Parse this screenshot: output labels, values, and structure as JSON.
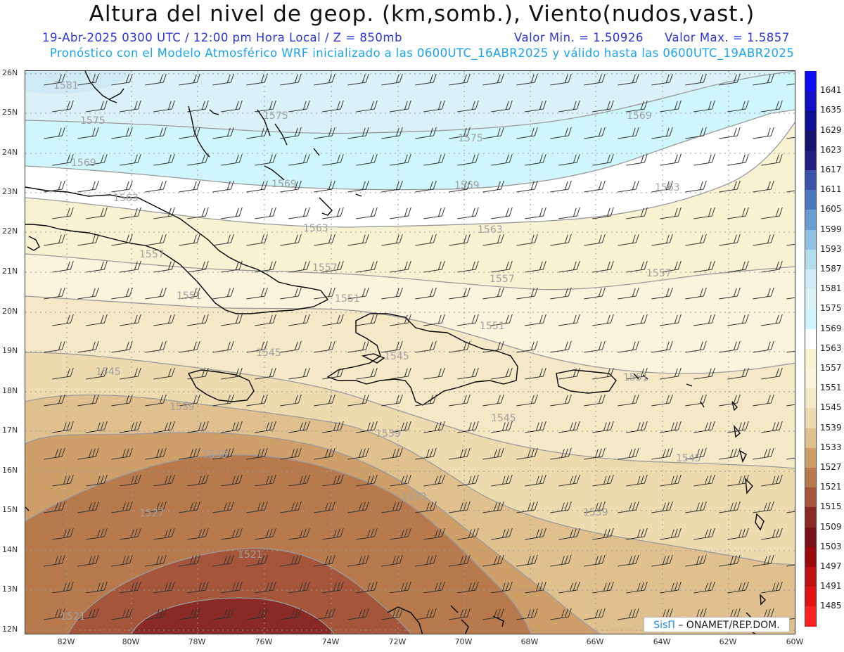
{
  "header": {
    "title": "Altura del nivel de geop. (km,somb.), Viento(nudos,vast.)",
    "date_line": "19-Abr-2025  0300 UTC / 12:00 pm Hora Local / Z = 850mb",
    "min_label": "Valor Min. = 1.50926",
    "max_label": "Valor Max. = 1.5857",
    "model_line": "Pronóstico con el Modelo Atmosférico WRF inicializado a las 0600UTC_16ABR2025 y válido hasta las  0600UTC_19ABR2025"
  },
  "axes": {
    "latitudes": [
      "26N",
      "25N",
      "24N",
      "23N",
      "22N",
      "21N",
      "20N",
      "19N",
      "18N",
      "17N",
      "16N",
      "15N",
      "14N",
      "13N",
      "12N"
    ],
    "longitudes": [
      "82W",
      "80W",
      "78W",
      "76W",
      "74W",
      "72W",
      "70W",
      "68W",
      "66W",
      "64W",
      "62W",
      "60W"
    ]
  },
  "colorbar": {
    "levels": [
      {
        "label": "1641",
        "color": "#0b0bf5"
      },
      {
        "label": "1635",
        "color": "#1010c8"
      },
      {
        "label": "1629",
        "color": "#0f0f95"
      },
      {
        "label": "1623",
        "color": "#151570"
      },
      {
        "label": "1617",
        "color": "#202080"
      },
      {
        "label": "1611",
        "color": "#3a52a8"
      },
      {
        "label": "1605",
        "color": "#4a78c0"
      },
      {
        "label": "1599",
        "color": "#6a9ed2"
      },
      {
        "label": "1593",
        "color": "#8fc2e2"
      },
      {
        "label": "1587",
        "color": "#b2ddef"
      },
      {
        "label": "1581",
        "color": "#cdeaf5"
      },
      {
        "label": "1575",
        "color": "#daf1f8"
      },
      {
        "label": "1569",
        "color": "#cff5fd"
      },
      {
        "label": "1563",
        "color": "#ffffff"
      },
      {
        "label": "1557",
        "color": "#f8f2d2"
      },
      {
        "label": "1551",
        "color": "#fbf3dc"
      },
      {
        "label": "1545",
        "color": "#f4e8c6"
      },
      {
        "label": "1539",
        "color": "#eddaae"
      },
      {
        "label": "1533",
        "color": "#dfc08e"
      },
      {
        "label": "1527",
        "color": "#cf9f6a"
      },
      {
        "label": "1521",
        "color": "#b87a4c"
      },
      {
        "label": "1515",
        "color": "#a5563a"
      },
      {
        "label": "1509",
        "color": "#8a2a24"
      },
      {
        "label": "1503",
        "color": "#7a1018"
      },
      {
        "label": "1497",
        "color": "#9a0a0a"
      },
      {
        "label": "1491",
        "color": "#c01010"
      },
      {
        "label": "1485",
        "color": "#e01414"
      },
      {
        "label": "",
        "color": "#ff2020"
      }
    ]
  },
  "contour_labels": [
    {
      "text": "1581"
    },
    {
      "text": "1575"
    },
    {
      "text": "1575"
    },
    {
      "text": "1575"
    },
    {
      "text": "1569"
    },
    {
      "text": "1569"
    },
    {
      "text": "1569"
    },
    {
      "text": "1569"
    },
    {
      "text": "1563"
    },
    {
      "text": "1563"
    },
    {
      "text": "1563"
    },
    {
      "text": "1563"
    },
    {
      "text": "1557"
    },
    {
      "text": "1557"
    },
    {
      "text": "1557"
    },
    {
      "text": "1557"
    },
    {
      "text": "1551"
    },
    {
      "text": "1551"
    },
    {
      "text": "1551"
    },
    {
      "text": "1551"
    },
    {
      "text": "1545"
    },
    {
      "text": "1545"
    },
    {
      "text": "1545"
    },
    {
      "text": "1545"
    },
    {
      "text": "1545"
    },
    {
      "text": "1539"
    },
    {
      "text": "1539"
    },
    {
      "text": "1539"
    },
    {
      "text": "1533"
    },
    {
      "text": "1533"
    },
    {
      "text": "1527"
    },
    {
      "text": "1521"
    },
    {
      "text": "1521"
    }
  ],
  "credit": {
    "brand": "SisΠ",
    "org": " – ONAMET/REP.DOM."
  }
}
